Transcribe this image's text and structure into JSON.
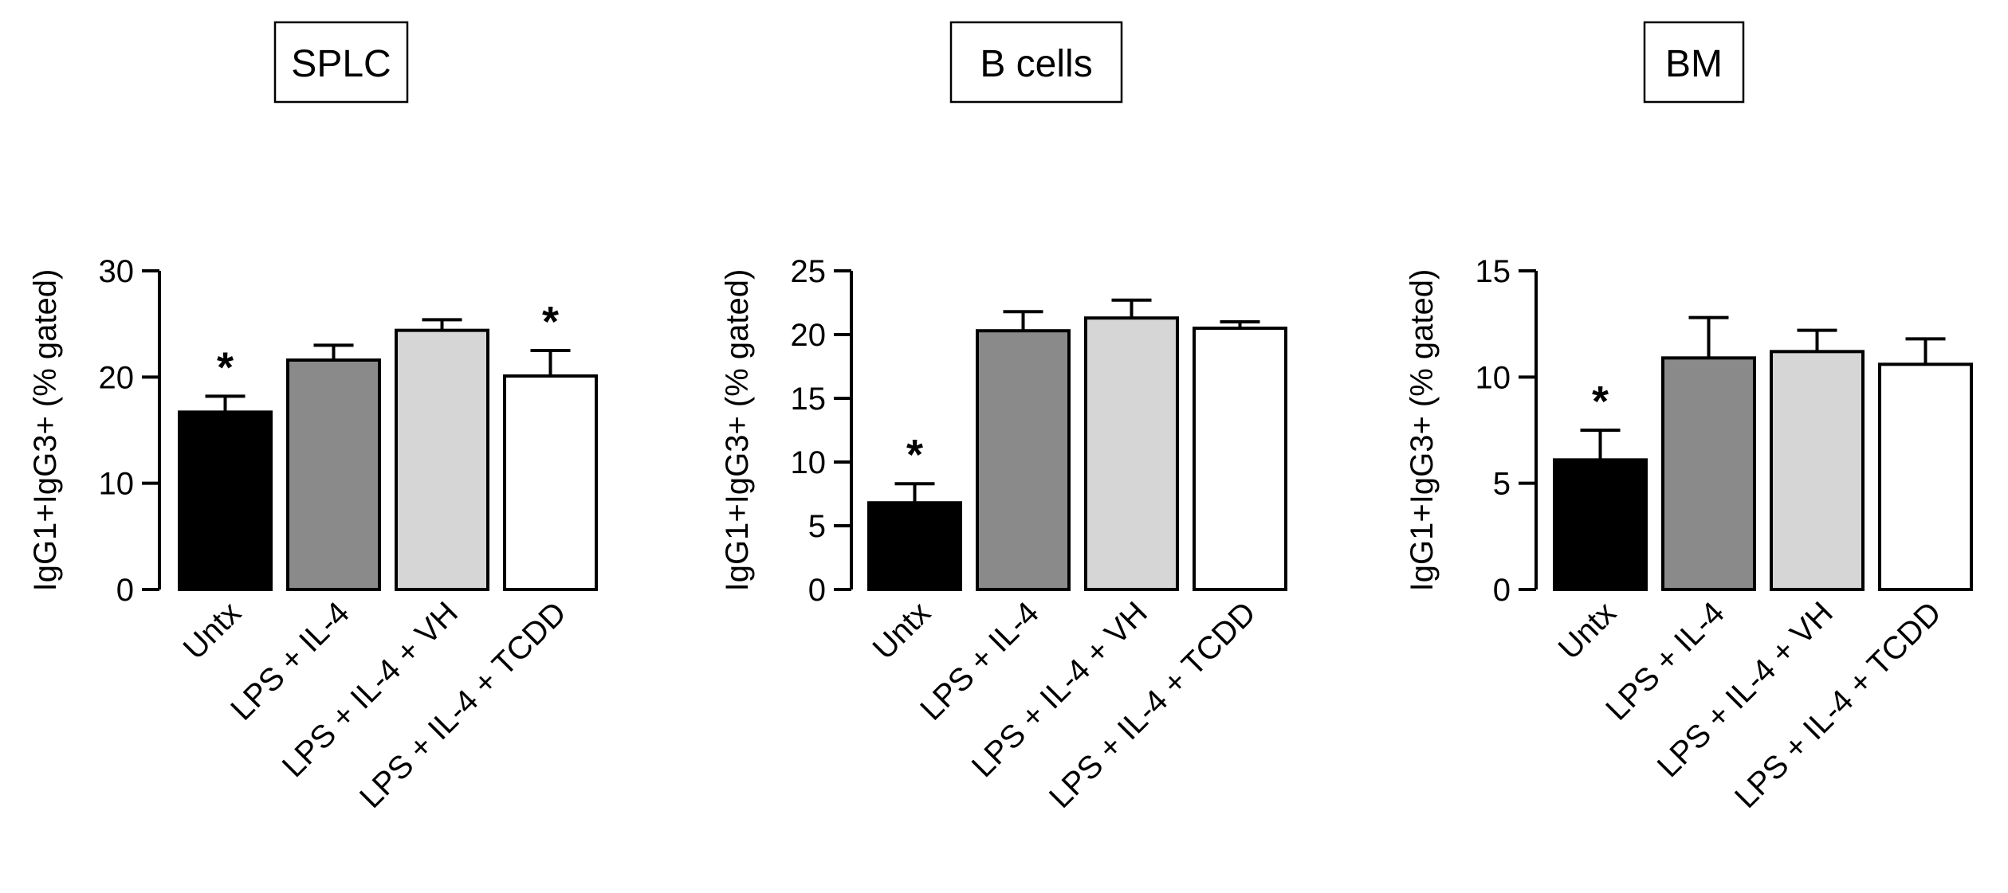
{
  "chart_data": [
    {
      "type": "bar",
      "title": "SPLC",
      "ylabel": "IgG1+IgG3+ (% gated)",
      "categories": [
        "Untx",
        "LPS + IL-4",
        "LPS + IL-4 + VH",
        "LPS + IL-4 + TCDD"
      ],
      "values": [
        16.7,
        21.6,
        24.4,
        20.1
      ],
      "errors": [
        1.5,
        1.4,
        1.0,
        2.4
      ],
      "significant": [
        "*",
        "",
        "",
        "*"
      ],
      "ylim": [
        0,
        30
      ],
      "yticks": [
        0,
        10,
        20,
        30
      ],
      "colors": [
        "#000000",
        "#8a8a8a",
        "#d6d6d6",
        "#ffffff"
      ]
    },
    {
      "type": "bar",
      "title": "B cells",
      "ylabel": "IgG1+IgG3+ (% gated)",
      "categories": [
        "Untx",
        "LPS + IL-4",
        "LPS + IL-4 + VH",
        "LPS + IL-4 + TCDD"
      ],
      "values": [
        6.8,
        20.3,
        21.3,
        20.5
      ],
      "errors": [
        1.5,
        1.5,
        1.4,
        0.5
      ],
      "significant": [
        "*",
        "",
        "",
        ""
      ],
      "ylim": [
        0,
        25
      ],
      "yticks": [
        0,
        5,
        10,
        15,
        20,
        25
      ],
      "colors": [
        "#000000",
        "#8a8a8a",
        "#d6d6d6",
        "#ffffff"
      ]
    },
    {
      "type": "bar",
      "title": "BM",
      "ylabel": "IgG1+IgG3+ (% gated)",
      "categories": [
        "Untx",
        "LPS + IL-4",
        "LPS + IL-4 + VH",
        "LPS + IL-4 + TCDD"
      ],
      "values": [
        6.1,
        10.9,
        11.2,
        10.6
      ],
      "errors": [
        1.4,
        1.9,
        1.0,
        1.2
      ],
      "significant": [
        "*",
        "",
        "",
        ""
      ],
      "ylim": [
        0,
        15
      ],
      "yticks": [
        0,
        5,
        10,
        15
      ],
      "colors": [
        "#000000",
        "#8a8a8a",
        "#d6d6d6",
        "#ffffff"
      ]
    }
  ]
}
